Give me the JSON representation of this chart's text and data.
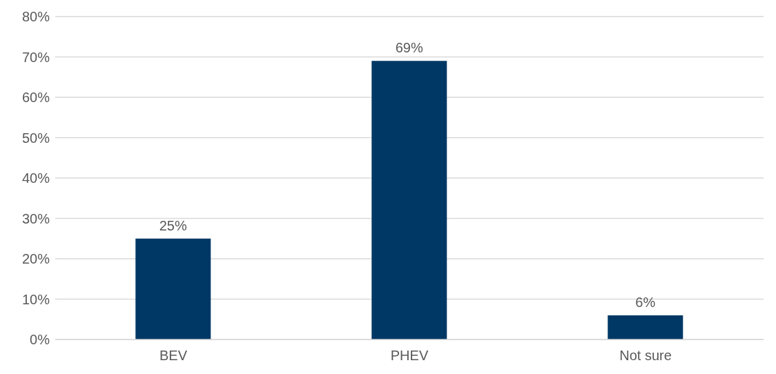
{
  "chart_data": {
    "type": "bar",
    "categories": [
      "BEV",
      "PHEV",
      "Not sure"
    ],
    "values": [
      25,
      69,
      6
    ],
    "color": "#003865",
    "value_labels": [
      "25%",
      "69%",
      "6%"
    ],
    "ylim": [
      0,
      80
    ],
    "yticks": [
      {
        "value": 0,
        "label": "0%"
      },
      {
        "value": 10,
        "label": "10%"
      },
      {
        "value": 20,
        "label": "20%"
      },
      {
        "value": 30,
        "label": "30%"
      },
      {
        "value": 40,
        "label": "40%"
      },
      {
        "value": 50,
        "label": "50%"
      },
      {
        "value": 60,
        "label": "60%"
      },
      {
        "value": 70,
        "label": "70%"
      },
      {
        "value": 80,
        "label": "80%"
      }
    ],
    "grid": "y",
    "legend": false
  }
}
